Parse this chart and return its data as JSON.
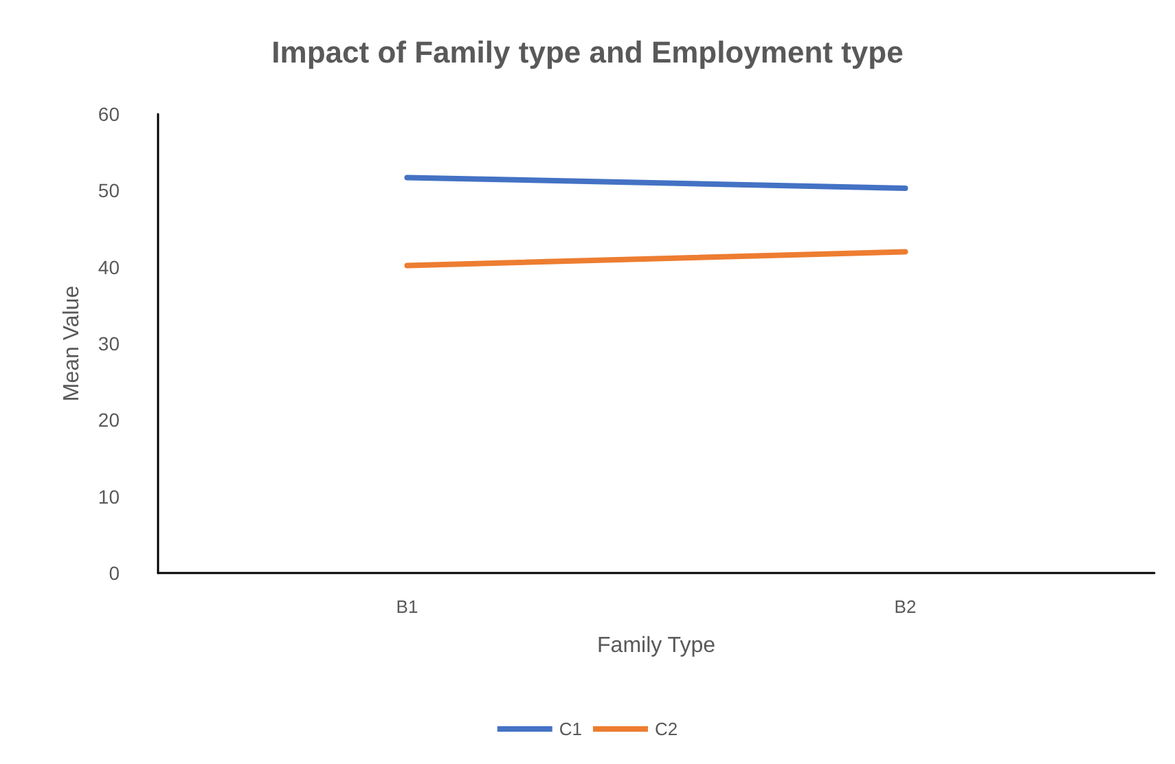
{
  "chart_data": {
    "type": "line",
    "title": "Impact of Family type and Employment type",
    "xlabel": "Family Type",
    "ylabel": "Mean Value",
    "categories": [
      "B1",
      "B2"
    ],
    "series": [
      {
        "name": "C1",
        "color": "#4472c4",
        "values": [
          51.7,
          50.3
        ]
      },
      {
        "name": "C2",
        "color": "#ed7d31",
        "values": [
          40.2,
          42.0
        ]
      }
    ],
    "ylim": [
      0,
      60
    ],
    "yticks": [
      0,
      10,
      20,
      30,
      40,
      50,
      60
    ],
    "grid": false,
    "legend": "bottom",
    "marker": "none",
    "line_style": "solid"
  }
}
